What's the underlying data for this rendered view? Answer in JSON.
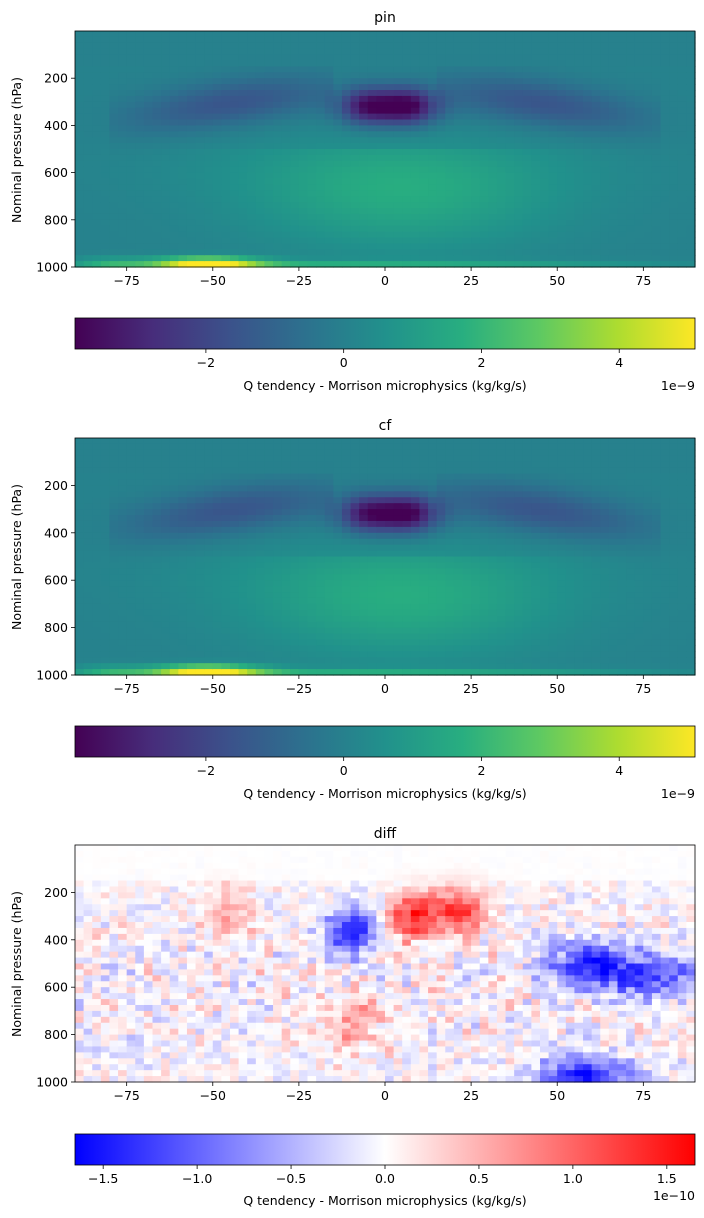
{
  "chart_data": [
    {
      "type": "heatmap",
      "title": "pin",
      "xlabel": "",
      "ylabel": "Nominal pressure (hPa)",
      "xlim": [
        -90,
        90
      ],
      "ylim": [
        1000,
        0
      ],
      "xticks": [
        -75,
        -50,
        -25,
        0,
        25,
        50,
        75
      ],
      "xtick_labels": [
        "−75",
        "−50",
        "−25",
        "0",
        "25",
        "50",
        "75"
      ],
      "yticks": [
        200,
        400,
        600,
        800,
        1000
      ],
      "ytick_labels": [
        "200",
        "400",
        "600",
        "800",
        "1000"
      ],
      "colormap": "viridis",
      "colorbar": {
        "label": "Q tendency - Morrison microphysics (kg/kg/s)",
        "range": [
          -3.9,
          5.1
        ],
        "ticks": [
          -2,
          0,
          2,
          4
        ],
        "tick_labels": [
          "−2",
          "0",
          "2",
          "4"
        ],
        "offset": "1e−9"
      },
      "features": [
        {
          "lat": -5,
          "p": 320,
          "value": -3.6
        },
        {
          "lat": 7,
          "p": 320,
          "value": -3.9
        },
        {
          "lat": -40,
          "p": 420,
          "value": -1.6
        },
        {
          "lat": 50,
          "p": 420,
          "value": -1.6
        },
        {
          "lat": 5,
          "p": 700,
          "value": 1.5
        },
        {
          "lat": -52,
          "p": 985,
          "value": 5.1
        }
      ]
    },
    {
      "type": "heatmap",
      "title": "cf",
      "xlabel": "",
      "ylabel": "Nominal pressure (hPa)",
      "xlim": [
        -90,
        90
      ],
      "ylim": [
        1000,
        0
      ],
      "xticks": [
        -75,
        -50,
        -25,
        0,
        25,
        50,
        75
      ],
      "xtick_labels": [
        "−75",
        "−50",
        "−25",
        "0",
        "25",
        "50",
        "75"
      ],
      "yticks": [
        200,
        400,
        600,
        800,
        1000
      ],
      "ytick_labels": [
        "200",
        "400",
        "600",
        "800",
        "1000"
      ],
      "colormap": "viridis",
      "colorbar": {
        "label": "Q tendency - Morrison microphysics (kg/kg/s)",
        "range": [
          -3.9,
          5.1
        ],
        "ticks": [
          -2,
          0,
          2,
          4
        ],
        "tick_labels": [
          "−2",
          "0",
          "2",
          "4"
        ],
        "offset": "1e−9"
      },
      "features": [
        {
          "lat": -5,
          "p": 320,
          "value": -3.5
        },
        {
          "lat": 7,
          "p": 320,
          "value": -3.9
        },
        {
          "lat": -40,
          "p": 420,
          "value": -1.6
        },
        {
          "lat": 50,
          "p": 420,
          "value": -1.6
        },
        {
          "lat": 5,
          "p": 700,
          "value": 1.5
        },
        {
          "lat": -52,
          "p": 985,
          "value": 5.1
        }
      ]
    },
    {
      "type": "heatmap",
      "title": "diff",
      "xlabel": "",
      "ylabel": "Nominal pressure (hPa)",
      "xlim": [
        -90,
        90
      ],
      "ylim": [
        1000,
        0
      ],
      "xticks": [
        -75,
        -50,
        -25,
        0,
        25,
        50,
        75
      ],
      "xtick_labels": [
        "−75",
        "−50",
        "−25",
        "0",
        "25",
        "50",
        "75"
      ],
      "yticks": [
        200,
        400,
        600,
        800,
        1000
      ],
      "ytick_labels": [
        "200",
        "400",
        "600",
        "800",
        "1000"
      ],
      "colormap": "bwr",
      "colorbar": {
        "label": "Q tendency - Morrison microphysics (kg/kg/s)",
        "range": [
          -1.65,
          1.65
        ],
        "ticks": [
          -1.5,
          -1.0,
          -0.5,
          0.0,
          0.5,
          1.0,
          1.5
        ],
        "tick_labels": [
          "−1.5",
          "−1.0",
          "−0.5",
          "0.0",
          "0.5",
          "1.0",
          "1.5"
        ],
        "offset": "1e−10"
      },
      "features": [
        {
          "lat": 8,
          "p": 300,
          "value": 1.4
        },
        {
          "lat": 22,
          "p": 280,
          "value": 1.2
        },
        {
          "lat": -45,
          "p": 290,
          "value": 0.6
        },
        {
          "lat": -10,
          "p": 360,
          "value": -1.5
        },
        {
          "lat": 60,
          "p": 510,
          "value": -1.4
        },
        {
          "lat": 80,
          "p": 560,
          "value": -0.9
        },
        {
          "lat": -8,
          "p": 760,
          "value": 0.7
        },
        {
          "lat": 58,
          "p": 990,
          "value": -1.5
        }
      ]
    }
  ]
}
